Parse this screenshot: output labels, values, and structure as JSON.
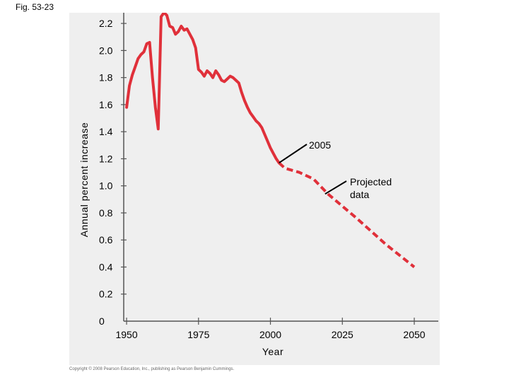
{
  "figure_label": "Fig. 53-23",
  "copyright": "Copyright © 2008 Pearson Education, Inc., publishing as Pearson Benjamin Cummings.",
  "colors": {
    "series": "#e0303a",
    "panel": "#efefef",
    "axis": "#555555",
    "annotation_line": "#000000"
  },
  "chart_data": {
    "type": "line",
    "title": "",
    "xlabel": "Year",
    "ylabel": "Annual percent increase",
    "xlim": [
      1949,
      2050
    ],
    "ylim": [
      0,
      2.3
    ],
    "xticks": [
      1950,
      1975,
      2000,
      2025,
      2050
    ],
    "yticks": [
      0,
      0.2,
      0.4,
      0.6,
      0.8,
      1.0,
      1.2,
      1.4,
      1.6,
      1.8,
      2.0,
      2.2
    ],
    "ytick_labels": [
      "0",
      "0.2",
      "0.4",
      "0.6",
      "0.8",
      "1.0",
      "1.2",
      "1.4",
      "1.6",
      "1.8",
      "2.0",
      "2.2"
    ],
    "grid": false,
    "series": [
      {
        "style": "solid",
        "x": [
          1950,
          1951,
          1952,
          1953,
          1954,
          1955,
          1956,
          1957,
          1958,
          1959,
          1960,
          1961,
          1962,
          1963,
          1964,
          1965,
          1966,
          1967,
          1968,
          1969,
          1970,
          1971,
          1972,
          1973,
          1974,
          1975,
          1976,
          1977,
          1978,
          1979,
          1980,
          1981,
          1982,
          1983,
          1984,
          1985,
          1986,
          1987,
          1988,
          1989,
          1990,
          1991,
          1992,
          1993,
          1994,
          1995,
          1996,
          1997,
          1998,
          1999,
          2000,
          2001,
          2002,
          2003
        ],
        "y": [
          1.58,
          1.74,
          1.82,
          1.88,
          1.94,
          1.97,
          1.99,
          2.05,
          2.06,
          1.8,
          1.58,
          1.42,
          2.25,
          2.28,
          2.26,
          2.18,
          2.17,
          2.12,
          2.14,
          2.18,
          2.15,
          2.16,
          2.12,
          2.08,
          2.02,
          1.86,
          1.84,
          1.81,
          1.85,
          1.83,
          1.8,
          1.85,
          1.82,
          1.78,
          1.77,
          1.79,
          1.81,
          1.8,
          1.78,
          1.76,
          1.69,
          1.63,
          1.58,
          1.54,
          1.51,
          1.48,
          1.46,
          1.43,
          1.38,
          1.33,
          1.28,
          1.24,
          1.2,
          1.17
        ]
      },
      {
        "style": "dashed",
        "x": [
          2003,
          2005,
          2010,
          2012,
          2015,
          2020,
          2030,
          2040,
          2050
        ],
        "y": [
          1.17,
          1.13,
          1.1,
          1.08,
          1.05,
          0.94,
          0.76,
          0.57,
          0.4
        ]
      }
    ],
    "annotations": [
      {
        "text": "2005",
        "x": 2003,
        "y": 1.17
      },
      {
        "lines": [
          "Projected",
          "data"
        ],
        "x": 2019,
        "y": 0.94
      }
    ]
  }
}
